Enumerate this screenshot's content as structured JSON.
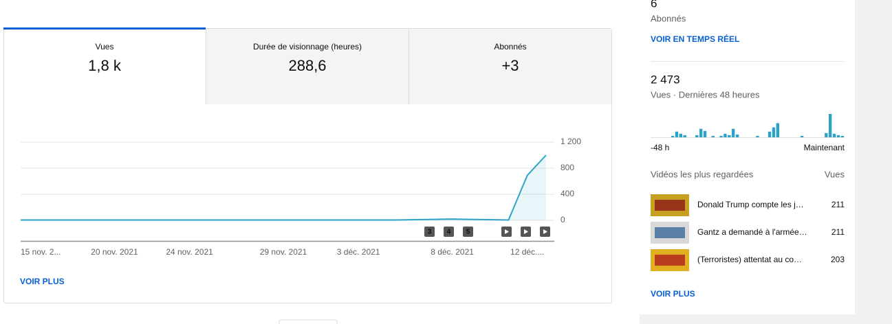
{
  "tabs": [
    {
      "label": "Vues",
      "value": "1,8 k"
    },
    {
      "label": "Durée de visionnage (heures)",
      "value": "288,6"
    },
    {
      "label": "Abonnés",
      "value": "+3"
    }
  ],
  "main_chart": {
    "type": "line",
    "color": "#2ba3c7",
    "categories": [
      "15 nov. 2...",
      null,
      null,
      null,
      null,
      "20 nov. 2021",
      null,
      null,
      null,
      "24 nov. 2021",
      null,
      null,
      null,
      null,
      "29 nov. 2021",
      null,
      null,
      null,
      "3 déc. 2021",
      null,
      null,
      null,
      null,
      "8 déc. 2021",
      null,
      null,
      null,
      "12 déc....",
      null
    ],
    "values": [
      5,
      5,
      5,
      5,
      5,
      5,
      5,
      5,
      5,
      5,
      5,
      5,
      5,
      5,
      5,
      5,
      5,
      5,
      5,
      5,
      5,
      10,
      15,
      20,
      15,
      10,
      5,
      690,
      1000
    ],
    "ylim": [
      0,
      1200
    ],
    "yticks": [
      {
        "value": 1200,
        "label": "1 200"
      },
      800,
      400,
      0
    ],
    "grid": true,
    "badges": [
      "3",
      "4",
      "5"
    ],
    "more": "VOIR PLUS"
  },
  "realtime": {
    "subscribers": "6",
    "subscribers_label": "Abonnés",
    "realtime_link": "VOIR EN TEMPS RÉEL",
    "views": "2 473",
    "views_label": "Vues · Dernières 48 heures",
    "mini_chart": {
      "type": "bar",
      "color": "#2ba3c7",
      "values": [
        0,
        0,
        0,
        0,
        0,
        2,
        8,
        5,
        3,
        0,
        0,
        3,
        12,
        9,
        0,
        2,
        0,
        2,
        5,
        3,
        12,
        4,
        0,
        0,
        0,
        0,
        2,
        0,
        0,
        8,
        14,
        20,
        0,
        0,
        0,
        0,
        0,
        2,
        0,
        0,
        0,
        0,
        0,
        6,
        33,
        5,
        3,
        2
      ],
      "start_label": "-48 h",
      "end_label": "Maintenant"
    },
    "top_videos_title": "Vidéos les plus regardées",
    "top_videos_metric": "Vues",
    "top_videos": [
      {
        "title": "Donald Trump compte les j…",
        "views": "211"
      },
      {
        "title": "Gantz a demandé à l'armée…",
        "views": "211"
      },
      {
        "title": "(Terroristes) attentat au co…",
        "views": "203"
      }
    ],
    "more": "VOIR PLUS"
  }
}
